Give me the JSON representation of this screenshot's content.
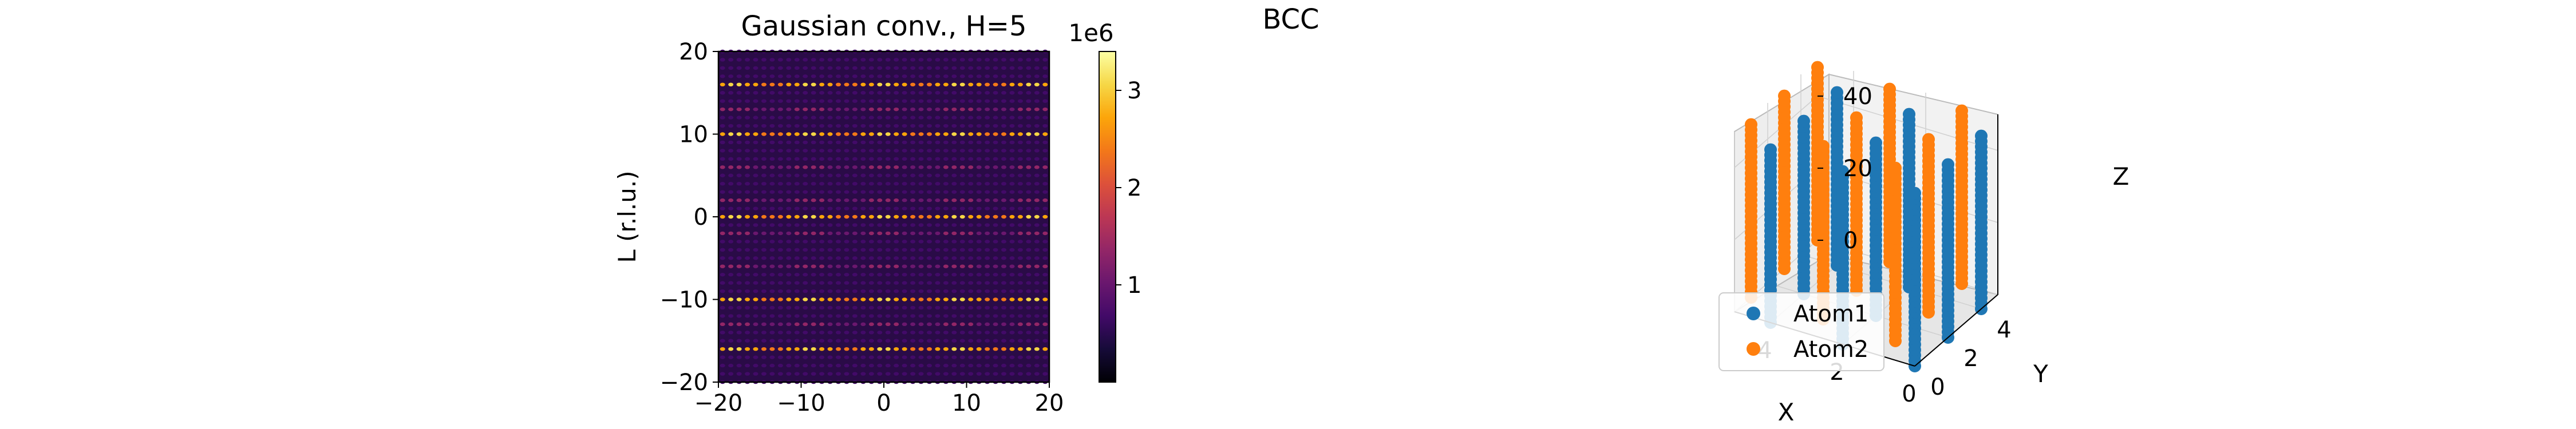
{
  "figure": {
    "suptitle": "BCC"
  },
  "chart_data": [
    {
      "type": "heatmap",
      "title": "Gaussian conv., H=5",
      "xlabel": "",
      "ylabel": "L (r.l.u.)",
      "xlim": [
        -20,
        20
      ],
      "ylim": [
        -20,
        20
      ],
      "xticks": [
        -20,
        -10,
        0,
        10,
        20
      ],
      "yticks": [
        -20,
        -10,
        0,
        10,
        20
      ],
      "xtick_labels": [
        "−20",
        "−10",
        "0",
        "10",
        "20"
      ],
      "ytick_labels": [
        "−20",
        "−10",
        "0",
        "10",
        "20"
      ],
      "colormap": "inferno",
      "colorbar": {
        "range": [
          0,
          3400000
        ],
        "ticks": [
          1000000,
          2000000,
          3000000
        ],
        "tick_labels": [
          "1",
          "2",
          "3"
        ],
        "offset_label": "1e6"
      },
      "peak_spacing_K": 1,
      "peak_spacing_L": 1,
      "strong_rows_L": [
        -16,
        -10,
        0,
        10,
        16
      ],
      "strong_row_value": 3000000,
      "medium_rows_L": [
        -6,
        -2,
        2,
        6,
        -13,
        13
      ],
      "medium_row_value": 1300000,
      "weak_row_value": 700000,
      "background_value": 150000
    },
    {
      "type": "scatter3d",
      "xlabel": "X",
      "ylabel": "Y",
      "zlabel": "Z",
      "xticks": [
        0,
        2,
        4
      ],
      "yticks": [
        0,
        2,
        4
      ],
      "zticks": [
        0,
        20,
        40
      ],
      "xlim": [
        0,
        5
      ],
      "ylim": [
        0,
        5
      ],
      "zlim": [
        0,
        50
      ],
      "legend_position": "lower-left",
      "series": [
        {
          "name": "Atom1",
          "color": "#1f77b4",
          "points": [
            [
              0,
              0
            ],
            [
              2,
              0
            ],
            [
              4,
              0
            ],
            [
              0,
              2
            ],
            [
              2,
              2
            ],
            [
              4,
              2
            ],
            [
              0,
              4
            ],
            [
              2,
              4
            ],
            [
              4,
              4
            ]
          ],
          "z_range": [
            0,
            49
          ]
        },
        {
          "name": "Atom2",
          "color": "#ff7f0e",
          "points": [
            [
              1,
              1
            ],
            [
              3,
              1
            ],
            [
              5,
              1
            ],
            [
              1,
              3
            ],
            [
              3,
              3
            ],
            [
              5,
              3
            ],
            [
              1,
              5
            ],
            [
              3,
              5
            ],
            [
              5,
              5
            ]
          ],
          "z_range": [
            0,
            49
          ]
        }
      ]
    }
  ]
}
